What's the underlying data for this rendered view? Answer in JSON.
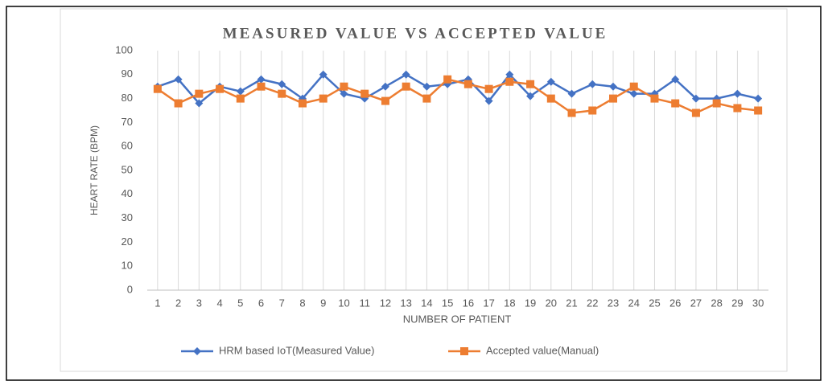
{
  "chart_data": {
    "type": "line",
    "title": "MEASURED VALUE VS ACCEPTED VALUE",
    "x_label": "NUMBER OF PATIENT",
    "y_label": "HEART RATE (BPM)",
    "categories": [
      "1",
      "2",
      "3",
      "4",
      "5",
      "6",
      "7",
      "8",
      "9",
      "10",
      "11",
      "12",
      "13",
      "14",
      "15",
      "16",
      "17",
      "18",
      "19",
      "20",
      "21",
      "22",
      "23",
      "24",
      "25",
      "26",
      "27",
      "28",
      "29",
      "30"
    ],
    "series": [
      {
        "name": "HRM based IoT(Measured Value)",
        "color": "#4472c4",
        "marker": "diamond",
        "values": [
          85,
          88,
          78,
          85,
          83,
          88,
          86,
          80,
          90,
          82,
          80,
          85,
          90,
          85,
          86,
          88,
          79,
          90,
          81,
          87,
          82,
          86,
          85,
          82,
          82,
          88,
          80,
          80,
          82,
          80
        ]
      },
      {
        "name": "Accepted value(Manual)",
        "color": "#ed7d31",
        "marker": "square",
        "values": [
          84,
          78,
          82,
          84,
          80,
          85,
          82,
          78,
          80,
          85,
          82,
          79,
          85,
          80,
          88,
          86,
          84,
          87,
          86,
          80,
          74,
          75,
          80,
          85,
          80,
          78,
          74,
          78,
          76,
          75
        ]
      }
    ],
    "ylim": [
      0,
      100
    ],
    "yticks": [
      0,
      10,
      20,
      30,
      40,
      50,
      60,
      70,
      80,
      90,
      100
    ],
    "grid": "vertical",
    "legend": "bottom"
  }
}
